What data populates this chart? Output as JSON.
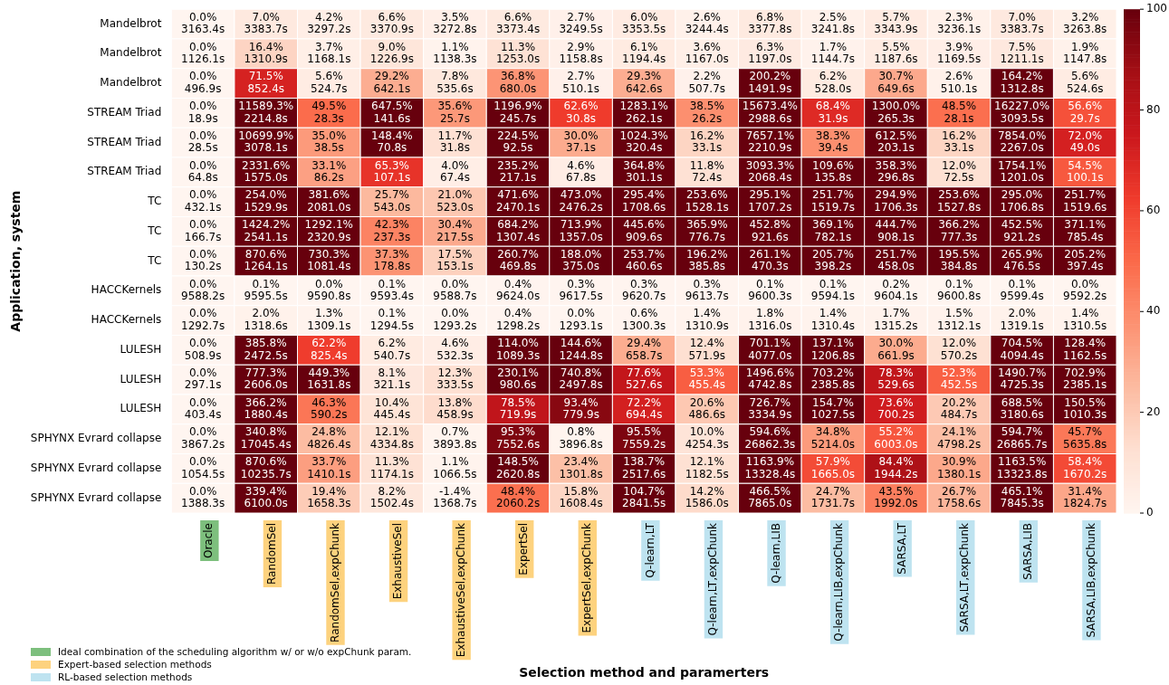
{
  "chart_data": {
    "type": "heatmap",
    "xlabel": "Selection method and paramerters",
    "ylabel": "Application, system",
    "categories": [
      "Oracle",
      "RandomSel",
      "RandomSel,expChunk",
      "ExhaustiveSel",
      "ExhaustiveSel,expChunk",
      "ExpertSel",
      "ExpertSel,expChunk",
      "Q-learn,LT",
      "Q-learn,LT,expChunk",
      "Q-learn,LIB",
      "Q-learn,LIB,expChunk",
      "SARSA,LT",
      "SARSA,LT,expChunk",
      "SARSA,LIB",
      "SARSA,LIB,expChunk"
    ],
    "colors": [
      "#7dbf7d",
      "#fdd27e",
      "#fdd27e",
      "#fdd27e",
      "#fdd27e",
      "#fdd27e",
      "#fdd27e",
      "#bee3f0",
      "#bee3f0",
      "#bee3f0",
      "#bee3f0",
      "#bee3f0",
      "#bee3f0",
      "#bee3f0",
      "#bee3f0"
    ],
    "y_categories": [
      "Mandelbrot",
      "Mandelbrot",
      "Mandelbrot",
      "STREAM Triad",
      "STREAM Triad",
      "STREAM Triad",
      "TC",
      "TC",
      "TC",
      "HACCKernels",
      "HACCKernels",
      "LULESH",
      "LULESH",
      "LULESH",
      "SPHYNX Evrard collapse",
      "SPHYNX Evrard collapse",
      "SPHYNX Evrard collapse"
    ],
    "cells": [
      [
        0.0,
        7.0,
        4.2,
        6.6,
        3.5,
        6.6,
        2.7,
        6.0,
        2.6,
        6.8,
        2.5,
        5.7,
        2.3,
        7.0,
        3.2
      ],
      [
        0.0,
        16.4,
        3.7,
        9.0,
        1.1,
        11.3,
        2.9,
        6.1,
        3.6,
        6.3,
        1.7,
        5.5,
        3.9,
        7.5,
        1.9
      ],
      [
        0.0,
        71.5,
        5.6,
        29.2,
        7.8,
        36.8,
        2.7,
        29.3,
        2.2,
        200.2,
        6.2,
        30.7,
        2.6,
        164.2,
        5.6
      ],
      [
        0.0,
        11589.3,
        49.5,
        647.5,
        35.6,
        1196.9,
        62.6,
        1283.1,
        38.5,
        15673.4,
        68.4,
        1300.0,
        48.5,
        16227.0,
        56.6
      ],
      [
        0.0,
        10699.9,
        35.0,
        148.4,
        11.7,
        224.5,
        30.0,
        1024.3,
        16.2,
        7657.1,
        38.3,
        612.5,
        16.2,
        7854.0,
        72.0
      ],
      [
        0.0,
        2331.6,
        33.1,
        65.3,
        4.0,
        235.2,
        4.6,
        364.8,
        11.8,
        3093.3,
        109.6,
        358.3,
        12.0,
        1754.1,
        54.5
      ],
      [
        0.0,
        254.0,
        381.6,
        25.7,
        21.0,
        471.6,
        473.0,
        295.4,
        253.6,
        295.1,
        251.7,
        294.9,
        253.6,
        295.0,
        251.7
      ],
      [
        0.0,
        1424.2,
        1292.1,
        42.3,
        30.4,
        684.2,
        713.9,
        445.6,
        365.9,
        452.8,
        369.1,
        444.7,
        366.2,
        452.5,
        371.1
      ],
      [
        0.0,
        870.6,
        730.3,
        37.3,
        17.5,
        260.7,
        188.0,
        253.7,
        196.2,
        261.1,
        205.7,
        251.7,
        195.5,
        265.9,
        205.2
      ],
      [
        0.0,
        0.1,
        0.0,
        0.1,
        0.0,
        0.4,
        0.3,
        0.3,
        0.3,
        0.1,
        0.1,
        0.2,
        0.1,
        0.1,
        0.0
      ],
      [
        0.0,
        2.0,
        1.3,
        0.1,
        0.0,
        0.4,
        0.0,
        0.6,
        1.4,
        1.8,
        1.4,
        1.7,
        1.5,
        2.0,
        1.4
      ],
      [
        0.0,
        385.8,
        62.2,
        6.2,
        4.6,
        114.0,
        144.6,
        29.4,
        12.4,
        701.1,
        137.1,
        30.0,
        12.0,
        704.5,
        128.4
      ],
      [
        0.0,
        777.3,
        449.3,
        8.1,
        12.3,
        230.1,
        740.8,
        77.6,
        53.3,
        1496.6,
        703.2,
        78.3,
        52.3,
        1490.7,
        702.9
      ],
      [
        0.0,
        366.2,
        46.3,
        10.4,
        13.8,
        78.5,
        93.4,
        72.2,
        20.6,
        726.7,
        154.7,
        73.6,
        20.2,
        688.5,
        150.5
      ],
      [
        0.0,
        340.8,
        24.8,
        12.1,
        0.7,
        95.3,
        0.8,
        95.5,
        10.0,
        594.6,
        34.8,
        55.2,
        24.1,
        594.7,
        45.7
      ],
      [
        0.0,
        870.6,
        33.7,
        11.3,
        1.1,
        148.5,
        23.4,
        138.7,
        12.1,
        1163.9,
        57.9,
        84.4,
        30.9,
        1163.5,
        58.4
      ],
      [
        0.0,
        339.4,
        19.4,
        8.2,
        -1.4,
        48.4,
        15.8,
        104.7,
        14.2,
        466.5,
        24.7,
        43.5,
        26.7,
        465.1,
        31.4
      ]
    ],
    "cell_labels": [
      [
        "0.0%\n3163.4s",
        "7.0%\n3383.7s",
        "4.2%\n3297.2s",
        "6.6%\n3370.9s",
        "3.5%\n3272.8s",
        "6.6%\n3373.4s",
        "2.7%\n3249.5s",
        "6.0%\n3353.5s",
        "2.6%\n3244.4s",
        "6.8%\n3377.8s",
        "2.5%\n3241.8s",
        "5.7%\n3343.9s",
        "2.3%\n3236.1s",
        "7.0%\n3383.7s",
        "3.2%\n3263.8s"
      ],
      [
        "0.0%\n1126.1s",
        "16.4%\n1310.9s",
        "3.7%\n1168.1s",
        "9.0%\n1226.9s",
        "1.1%\n1138.3s",
        "11.3%\n1253.0s",
        "2.9%\n1158.8s",
        "6.1%\n1194.4s",
        "3.6%\n1167.0s",
        "6.3%\n1197.0s",
        "1.7%\n1144.7s",
        "5.5%\n1187.6s",
        "3.9%\n1169.5s",
        "7.5%\n1211.1s",
        "1.9%\n1147.8s"
      ],
      [
        "0.0%\n496.9s",
        "71.5%\n852.4s",
        "5.6%\n524.7s",
        "29.2%\n642.1s",
        "7.8%\n535.6s",
        "36.8%\n680.0s",
        "2.7%\n510.1s",
        "29.3%\n642.6s",
        "2.2%\n507.7s",
        "200.2%\n1491.9s",
        "6.2%\n528.0s",
        "30.7%\n649.6s",
        "2.6%\n510.1s",
        "164.2%\n1312.8s",
        "5.6%\n524.6s"
      ],
      [
        "0.0%\n18.9s",
        "11589.3%\n2214.8s",
        "49.5%\n28.3s",
        "647.5%\n141.6s",
        "35.6%\n25.7s",
        "1196.9%\n245.7s",
        "62.6%\n30.8s",
        "1283.1%\n262.1s",
        "38.5%\n26.2s",
        "15673.4%\n2988.6s",
        "68.4%\n31.9s",
        "1300.0%\n265.3s",
        "48.5%\n28.1s",
        "16227.0%\n3093.5s",
        "56.6%\n29.7s"
      ],
      [
        "0.0%\n28.5s",
        "10699.9%\n3078.1s",
        "35.0%\n38.5s",
        "148.4%\n70.8s",
        "11.7%\n31.8s",
        "224.5%\n92.5s",
        "30.0%\n37.1s",
        "1024.3%\n320.4s",
        "16.2%\n33.1s",
        "7657.1%\n2210.9s",
        "38.3%\n39.4s",
        "612.5%\n203.1s",
        "16.2%\n33.1s",
        "7854.0%\n2267.0s",
        "72.0%\n49.0s"
      ],
      [
        "0.0%\n64.8s",
        "2331.6%\n1575.0s",
        "33.1%\n86.2s",
        "65.3%\n107.1s",
        "4.0%\n67.4s",
        "235.2%\n217.1s",
        "4.6%\n67.8s",
        "364.8%\n301.1s",
        "11.8%\n72.4s",
        "3093.3%\n2068.4s",
        "109.6%\n135.8s",
        "358.3%\n296.8s",
        "12.0%\n72.5s",
        "1754.1%\n1201.0s",
        "54.5%\n100.1s"
      ],
      [
        "0.0%\n432.1s",
        "254.0%\n1529.9s",
        "381.6%\n2081.0s",
        "25.7%\n543.0s",
        "21.0%\n523.0s",
        "471.6%\n2470.1s",
        "473.0%\n2476.2s",
        "295.4%\n1708.6s",
        "253.6%\n1528.1s",
        "295.1%\n1707.2s",
        "251.7%\n1519.7s",
        "294.9%\n1706.3s",
        "253.6%\n1527.8s",
        "295.0%\n1706.8s",
        "251.7%\n1519.6s"
      ],
      [
        "0.0%\n166.7s",
        "1424.2%\n2541.1s",
        "1292.1%\n2320.9s",
        "42.3%\n237.3s",
        "30.4%\n217.5s",
        "684.2%\n1307.4s",
        "713.9%\n1357.0s",
        "445.6%\n909.6s",
        "365.9%\n776.7s",
        "452.8%\n921.6s",
        "369.1%\n782.1s",
        "444.7%\n908.1s",
        "366.2%\n777.3s",
        "452.5%\n921.2s",
        "371.1%\n785.4s"
      ],
      [
        "0.0%\n130.2s",
        "870.6%\n1264.1s",
        "730.3%\n1081.4s",
        "37.3%\n178.8s",
        "17.5%\n153.1s",
        "260.7%\n469.8s",
        "188.0%\n375.0s",
        "253.7%\n460.6s",
        "196.2%\n385.8s",
        "261.1%\n470.3s",
        "205.7%\n398.2s",
        "251.7%\n458.0s",
        "195.5%\n384.8s",
        "265.9%\n476.5s",
        "205.2%\n397.4s"
      ],
      [
        "0.0%\n9588.2s",
        "0.1%\n9595.5s",
        "0.0%\n9590.8s",
        "0.1%\n9593.4s",
        "0.0%\n9588.7s",
        "0.4%\n9624.0s",
        "0.3%\n9617.5s",
        "0.3%\n9620.7s",
        "0.3%\n9613.7s",
        "0.1%\n9600.3s",
        "0.1%\n9594.1s",
        "0.2%\n9604.1s",
        "0.1%\n9600.8s",
        "0.1%\n9599.4s",
        "0.0%\n9592.2s"
      ],
      [
        "0.0%\n1292.7s",
        "2.0%\n1318.6s",
        "1.3%\n1309.1s",
        "0.1%\n1294.5s",
        "0.0%\n1293.2s",
        "0.4%\n1298.2s",
        "0.0%\n1293.1s",
        "0.6%\n1300.3s",
        "1.4%\n1310.9s",
        "1.8%\n1316.0s",
        "1.4%\n1310.4s",
        "1.7%\n1315.2s",
        "1.5%\n1312.1s",
        "2.0%\n1319.1s",
        "1.4%\n1310.5s"
      ],
      [
        "0.0%\n508.9s",
        "385.8%\n2472.5s",
        "62.2%\n825.4s",
        "6.2%\n540.7s",
        "4.6%\n532.3s",
        "114.0%\n1089.3s",
        "144.6%\n1244.8s",
        "29.4%\n658.7s",
        "12.4%\n571.9s",
        "701.1%\n4077.0s",
        "137.1%\n1206.8s",
        "30.0%\n661.9s",
        "12.0%\n570.2s",
        "704.5%\n4094.4s",
        "128.4%\n1162.5s"
      ],
      [
        "0.0%\n297.1s",
        "777.3%\n2606.0s",
        "449.3%\n1631.8s",
        "8.1%\n321.1s",
        "12.3%\n333.5s",
        "230.1%\n980.6s",
        "740.8%\n2497.8s",
        "77.6%\n527.6s",
        "53.3%\n455.4s",
        "1496.6%\n4742.8s",
        "703.2%\n2385.8s",
        "78.3%\n529.6s",
        "52.3%\n452.5s",
        "1490.7%\n4725.3s",
        "702.9%\n2385.1s"
      ],
      [
        "0.0%\n403.4s",
        "366.2%\n1880.4s",
        "46.3%\n590.2s",
        "10.4%\n445.4s",
        "13.8%\n458.9s",
        "78.5%\n719.9s",
        "93.4%\n779.9s",
        "72.2%\n694.4s",
        "20.6%\n486.6s",
        "726.7%\n3334.9s",
        "154.7%\n1027.5s",
        "73.6%\n700.2s",
        "20.2%\n484.7s",
        "688.5%\n3180.6s",
        "150.5%\n1010.3s"
      ],
      [
        "0.0%\n3867.2s",
        "340.8%\n17045.4s",
        "24.8%\n4826.4s",
        "12.1%\n4334.8s",
        "0.7%\n3893.8s",
        "95.3%\n7552.6s",
        "0.8%\n3896.8s",
        "95.5%\n7559.2s",
        "10.0%\n4254.3s",
        "594.6%\n26862.3s",
        "34.8%\n5214.0s",
        "55.2%\n6003.0s",
        "24.1%\n4798.2s",
        "594.7%\n26865.7s",
        "45.7%\n5635.8s"
      ],
      [
        "0.0%\n1054.5s",
        "870.6%\n10235.7s",
        "33.7%\n1410.1s",
        "11.3%\n1174.1s",
        "1.1%\n1066.5s",
        "148.5%\n2620.8s",
        "23.4%\n1301.8s",
        "138.7%\n2517.6s",
        "12.1%\n1182.5s",
        "1163.9%\n13328.4s",
        "57.9%\n1665.0s",
        "84.4%\n1944.2s",
        "30.9%\n1380.1s",
        "1163.5%\n13323.8s",
        "58.4%\n1670.2s"
      ],
      [
        "0.0%\n1388.3s",
        "339.4%\n6100.0s",
        "19.4%\n1658.3s",
        "8.2%\n1502.4s",
        "-1.4%\n1368.7s",
        "48.4%\n2060.2s",
        "15.8%\n1608.4s",
        "104.7%\n2841.5s",
        "14.2%\n1586.0s",
        "466.5%\n7865.0s",
        "24.7%\n1731.7s",
        "43.5%\n1992.0s",
        "26.7%\n1758.6s",
        "465.1%\n7845.3s",
        "31.4%\n1824.7s"
      ]
    ],
    "clim": [
      0,
      100
    ],
    "cticks": [
      0,
      20,
      40,
      60,
      80,
      100
    ],
    "annotations": [
      "Ideal combination of the scheduling algorithm w/ or w/o expChunk param.",
      "Expert-based selection methods",
      "RL-based selection methods"
    ]
  }
}
